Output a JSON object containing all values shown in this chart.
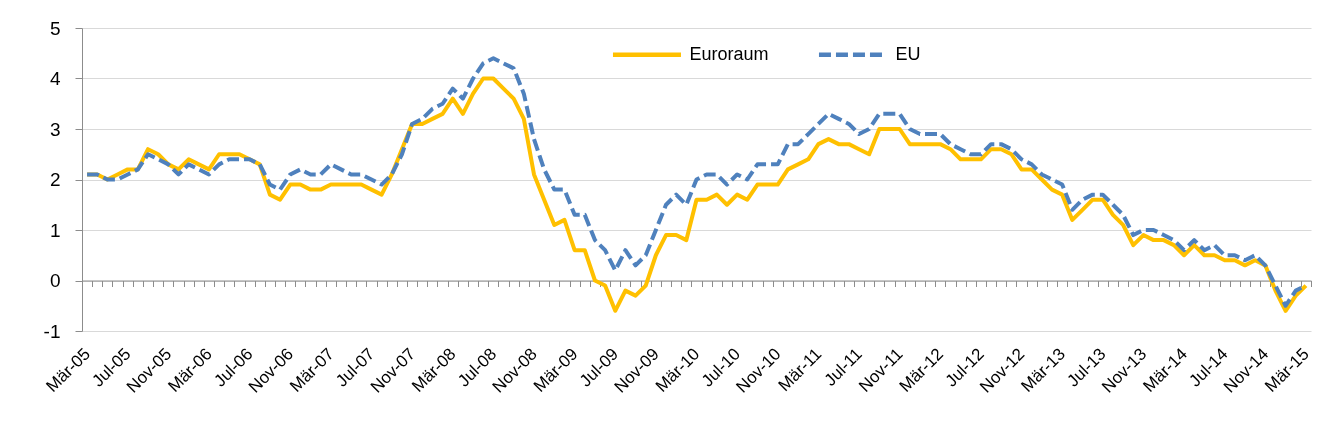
{
  "chart_data": {
    "type": "line",
    "categories": [
      "Mär-05",
      null,
      null,
      null,
      "Jul-05",
      null,
      null,
      null,
      "Nov-05",
      null,
      null,
      null,
      "Mär-06",
      null,
      null,
      null,
      "Jul-06",
      null,
      null,
      null,
      "Nov-06",
      null,
      null,
      null,
      "Mär-07",
      null,
      null,
      null,
      "Jul-07",
      null,
      null,
      null,
      "Nov-07",
      null,
      null,
      null,
      "Mär-08",
      null,
      null,
      null,
      "Jul-08",
      null,
      null,
      null,
      "Nov-08",
      null,
      null,
      null,
      "Mär-09",
      null,
      null,
      null,
      "Jul-09",
      null,
      null,
      null,
      "Nov-09",
      null,
      null,
      null,
      "Mär-10",
      null,
      null,
      null,
      "Jul-10",
      null,
      null,
      null,
      "Nov-10",
      null,
      null,
      null,
      "Mär-11",
      null,
      null,
      null,
      "Jul-11",
      null,
      null,
      null,
      "Nov-11",
      null,
      null,
      null,
      "Mär-12",
      null,
      null,
      null,
      "Jul-12",
      null,
      null,
      null,
      "Nov-12",
      null,
      null,
      null,
      "Mär-13",
      null,
      null,
      null,
      "Jul-13",
      null,
      null,
      null,
      "Nov-13",
      null,
      null,
      null,
      "Mär-14",
      null,
      null,
      null,
      "Jul-14",
      null,
      null,
      null,
      "Nov-14",
      null,
      null,
      null,
      "Mär-15"
    ],
    "series": [
      {
        "name": "Euroraum",
        "color": "#ffc000",
        "line_style": "solid",
        "values": [
          2.1,
          2.1,
          2.0,
          2.1,
          2.2,
          2.2,
          2.6,
          2.5,
          2.3,
          2.2,
          2.4,
          2.3,
          2.2,
          2.5,
          2.5,
          2.5,
          2.4,
          2.3,
          1.7,
          1.6,
          1.9,
          1.9,
          1.8,
          1.8,
          1.9,
          1.9,
          1.9,
          1.9,
          1.8,
          1.7,
          2.1,
          2.6,
          3.1,
          3.1,
          3.2,
          3.3,
          3.6,
          3.3,
          3.7,
          4.0,
          4.0,
          3.8,
          3.6,
          3.2,
          2.1,
          1.6,
          1.1,
          1.2,
          0.6,
          0.6,
          0.0,
          -0.1,
          -0.6,
          -0.2,
          -0.3,
          -0.1,
          0.5,
          0.9,
          0.9,
          0.8,
          1.6,
          1.6,
          1.7,
          1.5,
          1.7,
          1.6,
          1.9,
          1.9,
          1.9,
          2.2,
          2.3,
          2.4,
          2.7,
          2.8,
          2.7,
          2.7,
          2.6,
          2.5,
          3.0,
          3.0,
          3.0,
          2.7,
          2.7,
          2.7,
          2.7,
          2.6,
          2.4,
          2.4,
          2.4,
          2.6,
          2.6,
          2.5,
          2.2,
          2.2,
          2.0,
          1.8,
          1.7,
          1.2,
          1.4,
          1.6,
          1.6,
          1.3,
          1.1,
          0.7,
          0.9,
          0.8,
          0.8,
          0.7,
          0.5,
          0.7,
          0.5,
          0.5,
          0.4,
          0.4,
          0.3,
          0.4,
          0.3,
          -0.2,
          -0.6,
          -0.3,
          -0.1
        ]
      },
      {
        "name": "EU",
        "color": "#4f81bd",
        "line_style": "dashed",
        "values": [
          2.1,
          2.1,
          2.0,
          2.0,
          2.1,
          2.2,
          2.5,
          2.4,
          2.3,
          2.1,
          2.3,
          2.2,
          2.1,
          2.3,
          2.4,
          2.4,
          2.4,
          2.3,
          1.9,
          1.8,
          2.1,
          2.2,
          2.1,
          2.1,
          2.3,
          2.2,
          2.1,
          2.1,
          2.0,
          1.9,
          2.1,
          2.5,
          3.1,
          3.2,
          3.4,
          3.5,
          3.8,
          3.6,
          4.0,
          4.3,
          4.4,
          4.3,
          4.2,
          3.7,
          2.8,
          2.2,
          1.8,
          1.8,
          1.3,
          1.3,
          0.8,
          0.6,
          0.2,
          0.6,
          0.3,
          0.5,
          1.0,
          1.5,
          1.7,
          1.5,
          2.0,
          2.1,
          2.1,
          1.9,
          2.1,
          2.0,
          2.3,
          2.3,
          2.3,
          2.7,
          2.7,
          2.9,
          3.1,
          3.3,
          3.2,
          3.1,
          2.9,
          3.0,
          3.3,
          3.3,
          3.3,
          3.0,
          2.9,
          2.9,
          2.9,
          2.7,
          2.6,
          2.5,
          2.5,
          2.7,
          2.7,
          2.6,
          2.4,
          2.3,
          2.1,
          2.0,
          1.9,
          1.4,
          1.6,
          1.7,
          1.7,
          1.5,
          1.3,
          0.9,
          1.0,
          1.0,
          0.9,
          0.8,
          0.6,
          0.8,
          0.6,
          0.7,
          0.5,
          0.5,
          0.4,
          0.5,
          0.3,
          -0.1,
          -0.5,
          -0.2,
          -0.1
        ]
      }
    ],
    "ylim": [
      -1,
      5
    ],
    "yticks": [
      -1,
      0,
      1,
      2,
      3,
      4,
      5
    ],
    "grid": "y",
    "legend": "top"
  }
}
